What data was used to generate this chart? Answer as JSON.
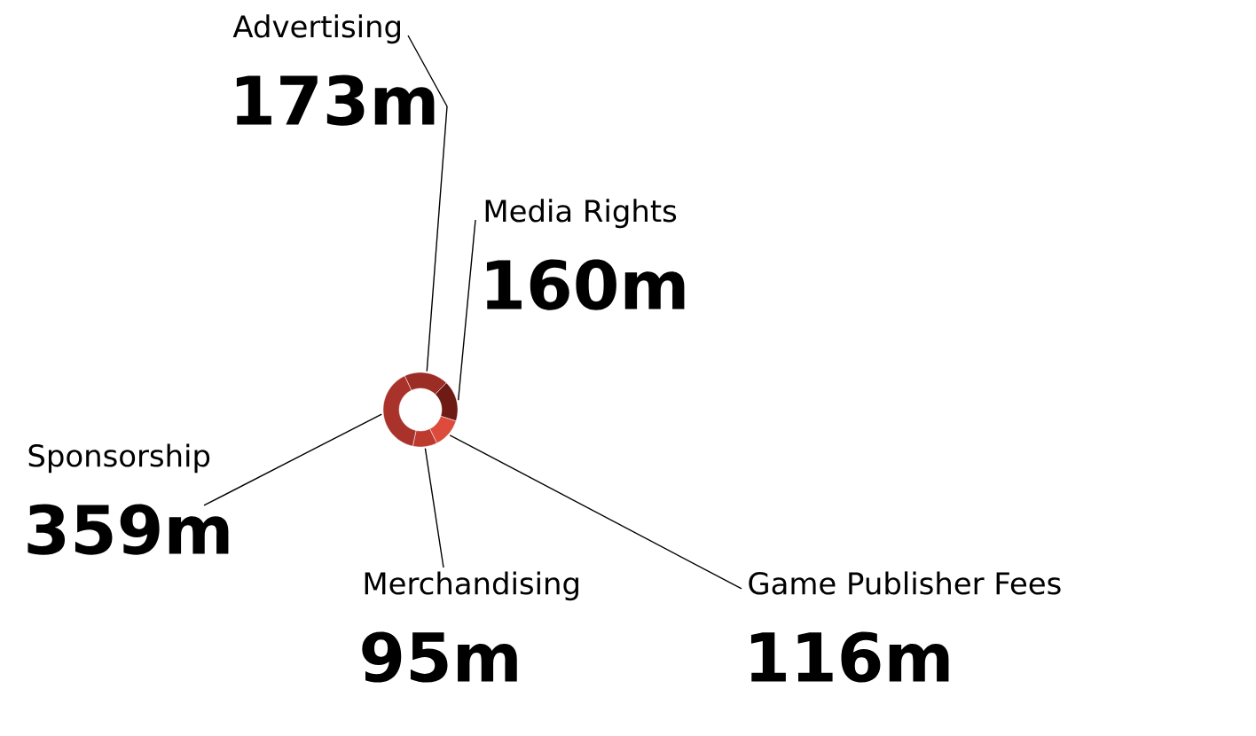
{
  "chart_data": {
    "type": "donut",
    "categories": [
      "Advertising",
      "Media Rights",
      "Game Publisher Fees",
      "Merchandising",
      "Sponsorship"
    ],
    "values": [
      173,
      160,
      116,
      95,
      359
    ],
    "value_labels": [
      "173m",
      "160m",
      "116m",
      "95m",
      "359m"
    ],
    "colors": [
      "#9c2d25",
      "#6e1a15",
      "#dc4b3b",
      "#bd3a2e",
      "#a9332b"
    ]
  }
}
